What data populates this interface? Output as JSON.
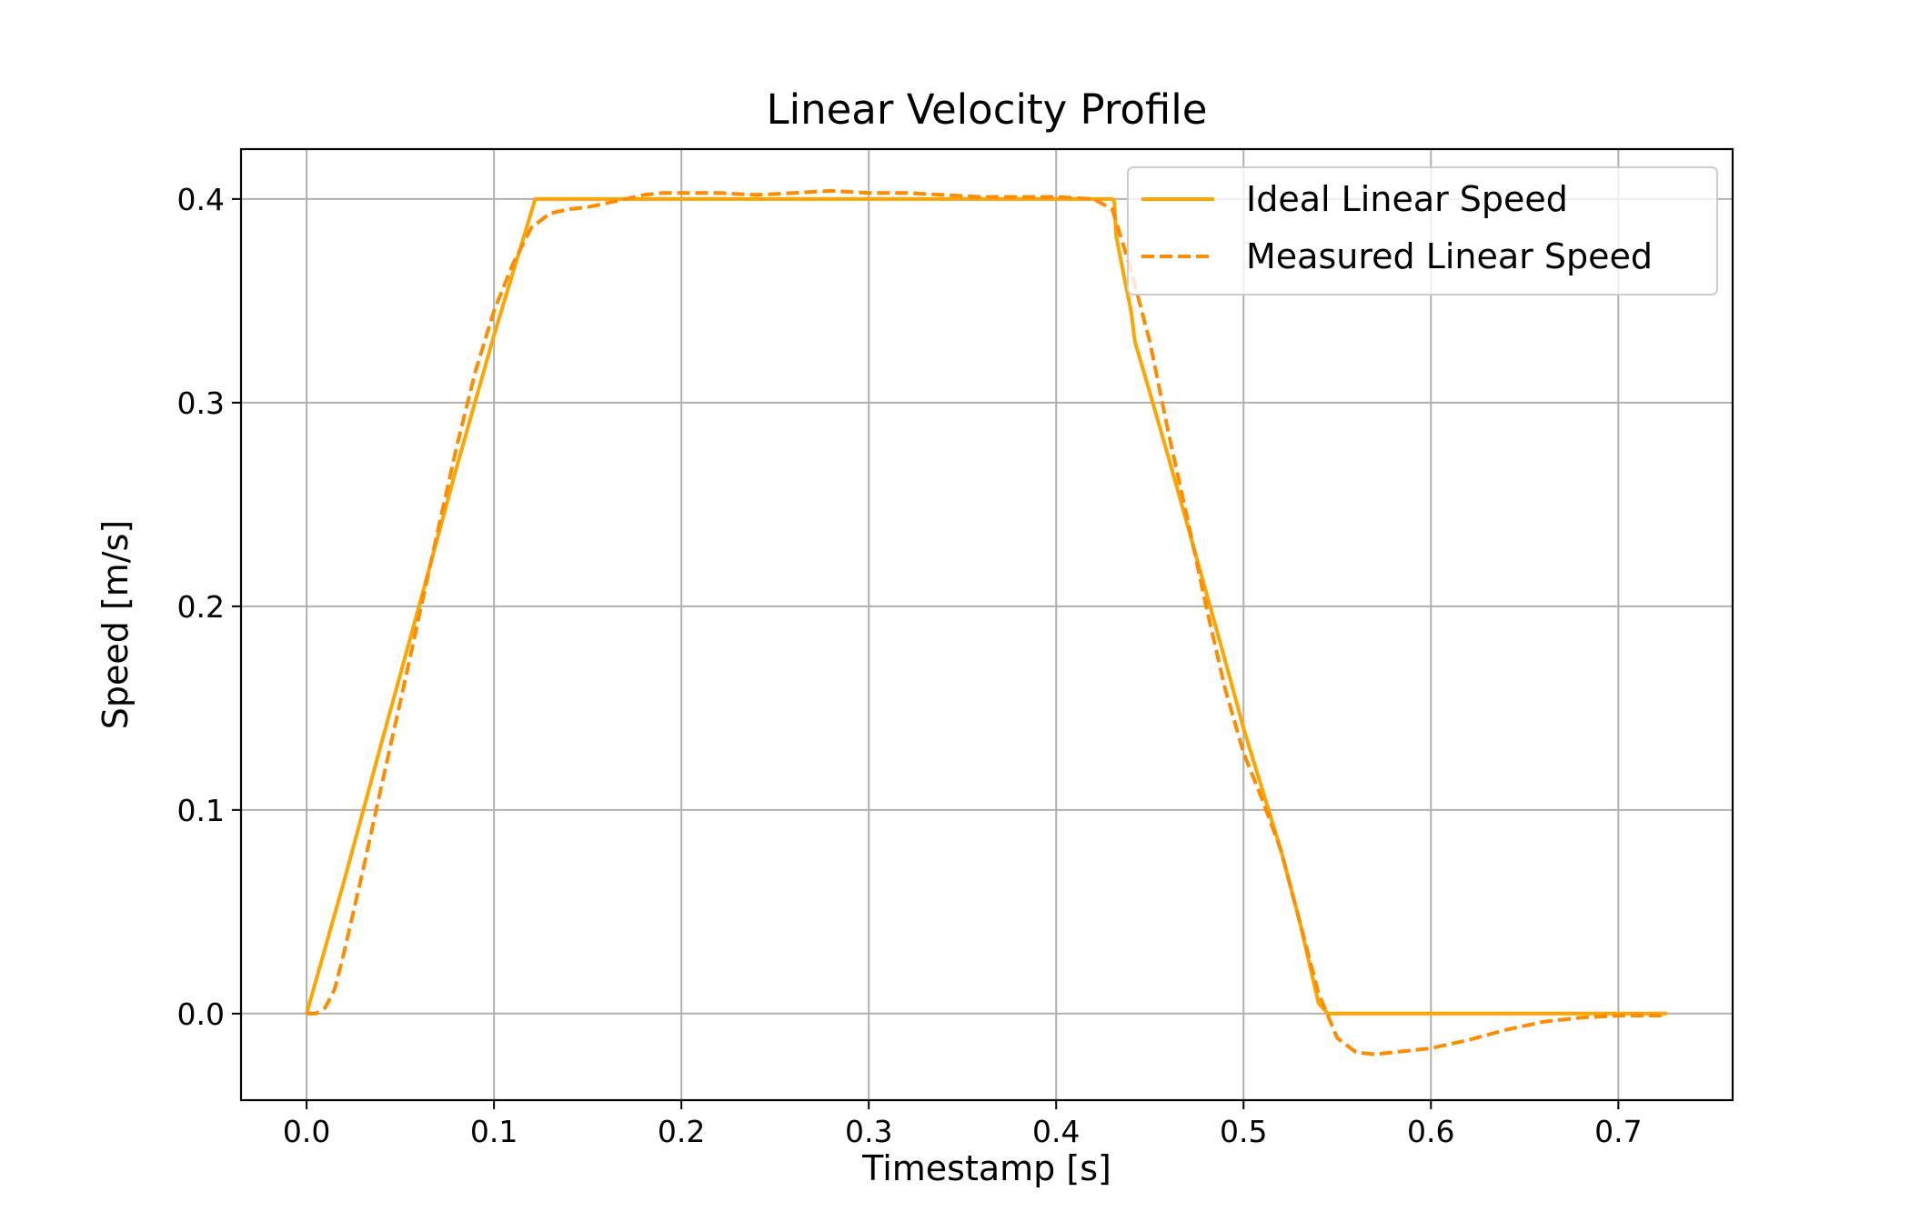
{
  "chart_data": {
    "type": "line",
    "title": "Linear Velocity Profile",
    "xlabel": "Timestamp [s]",
    "ylabel": "Speed [m/s]",
    "xlim": [
      -0.035,
      0.761
    ],
    "ylim": [
      -0.0425,
      0.4245
    ],
    "xticks": [
      0.0,
      0.1,
      0.2,
      0.3,
      0.4,
      0.5,
      0.6,
      0.7
    ],
    "xtick_labels": [
      "0.0",
      "0.1",
      "0.2",
      "0.3",
      "0.4",
      "0.5",
      "0.6",
      "0.7"
    ],
    "yticks": [
      0.0,
      0.1,
      0.2,
      0.3,
      0.4
    ],
    "ytick_labels": [
      "0.0",
      "0.1",
      "0.2",
      "0.3",
      "0.4"
    ],
    "grid": true,
    "legend_position": "top-right",
    "series": [
      {
        "name": "Ideal Linear Speed",
        "style": "solid",
        "color": "#ffa500",
        "x": [
          0.0,
          0.02,
          0.04,
          0.06,
          0.08,
          0.1,
          0.122,
          0.125,
          0.43,
          0.431,
          0.432,
          0.436,
          0.44,
          0.442,
          0.45,
          0.46,
          0.47,
          0.48,
          0.49,
          0.5,
          0.51,
          0.52,
          0.53,
          0.54,
          0.545,
          0.6,
          0.65,
          0.7,
          0.726
        ],
        "y": [
          0.0,
          0.065,
          0.133,
          0.2,
          0.268,
          0.333,
          0.4,
          0.4,
          0.4,
          0.399,
          0.382,
          0.363,
          0.345,
          0.33,
          0.305,
          0.273,
          0.24,
          0.207,
          0.174,
          0.14,
          0.11,
          0.08,
          0.045,
          0.005,
          0.0,
          0.0,
          0.0,
          0.0,
          0.0
        ]
      },
      {
        "name": "Measured Linear Speed",
        "style": "dashed",
        "color": "#ff8c00",
        "x": [
          0.0,
          0.005,
          0.01,
          0.015,
          0.02,
          0.03,
          0.04,
          0.05,
          0.06,
          0.07,
          0.08,
          0.09,
          0.1,
          0.11,
          0.12,
          0.13,
          0.14,
          0.15,
          0.16,
          0.17,
          0.18,
          0.19,
          0.2,
          0.22,
          0.24,
          0.26,
          0.28,
          0.3,
          0.32,
          0.34,
          0.36,
          0.38,
          0.4,
          0.42,
          0.43,
          0.44,
          0.45,
          0.46,
          0.47,
          0.48,
          0.49,
          0.5,
          0.51,
          0.52,
          0.53,
          0.54,
          0.55,
          0.56,
          0.57,
          0.58,
          0.6,
          0.62,
          0.64,
          0.66,
          0.68,
          0.7,
          0.726
        ],
        "y": [
          0.0,
          0.0,
          0.003,
          0.012,
          0.03,
          0.07,
          0.112,
          0.153,
          0.195,
          0.237,
          0.278,
          0.315,
          0.345,
          0.368,
          0.386,
          0.393,
          0.395,
          0.396,
          0.398,
          0.4,
          0.402,
          0.403,
          0.403,
          0.403,
          0.402,
          0.403,
          0.404,
          0.403,
          0.403,
          0.402,
          0.401,
          0.401,
          0.401,
          0.4,
          0.395,
          0.365,
          0.33,
          0.285,
          0.243,
          0.2,
          0.16,
          0.128,
          0.105,
          0.08,
          0.045,
          0.01,
          -0.012,
          -0.019,
          -0.02,
          -0.019,
          -0.017,
          -0.013,
          -0.008,
          -0.004,
          -0.002,
          -0.001,
          -0.001
        ]
      }
    ]
  }
}
